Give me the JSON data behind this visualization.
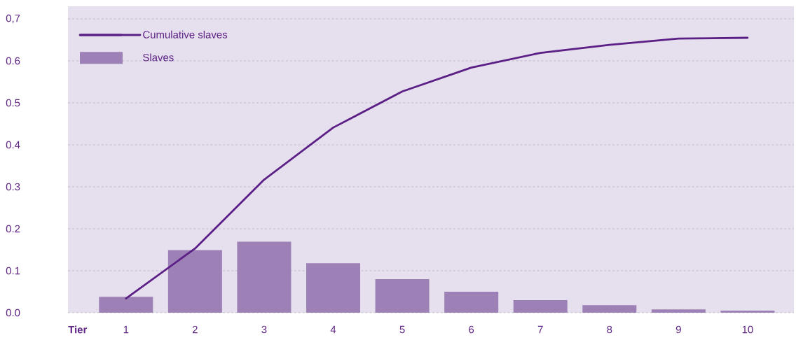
{
  "chart_data": {
    "type": "bar",
    "xlabel": "Tier",
    "categories": [
      "1",
      "2",
      "3",
      "4",
      "5",
      "6",
      "7",
      "8",
      "9",
      "10"
    ],
    "series": [
      {
        "name": "Slaves",
        "color": "#9d80b6",
        "values": [
          0.038,
          0.149,
          0.169,
          0.118,
          0.08,
          0.05,
          0.03,
          0.018,
          0.008,
          0.005
        ]
      },
      {
        "name": "Cumulative slaves",
        "type": "line",
        "color": "#5b1f86",
        "values": [
          0.034,
          0.153,
          0.317,
          0.441,
          0.527,
          0.584,
          0.619,
          0.638,
          0.653,
          0.655
        ]
      }
    ],
    "ylim": [
      0,
      0.73
    ],
    "yticks": [
      {
        "value": 0,
        "label": "0.0"
      },
      {
        "value": 0.1,
        "label": "0.1"
      },
      {
        "value": 0.2,
        "label": "0.2"
      },
      {
        "value": 0.3,
        "label": "0.3"
      },
      {
        "value": 0.4,
        "label": "0.4"
      },
      {
        "value": 0.5,
        "label": "0.5"
      },
      {
        "value": 0.6,
        "label": "0.6"
      },
      {
        "value": 0.7,
        "label": "0,7"
      }
    ],
    "grid": "y",
    "legend": "top left"
  }
}
